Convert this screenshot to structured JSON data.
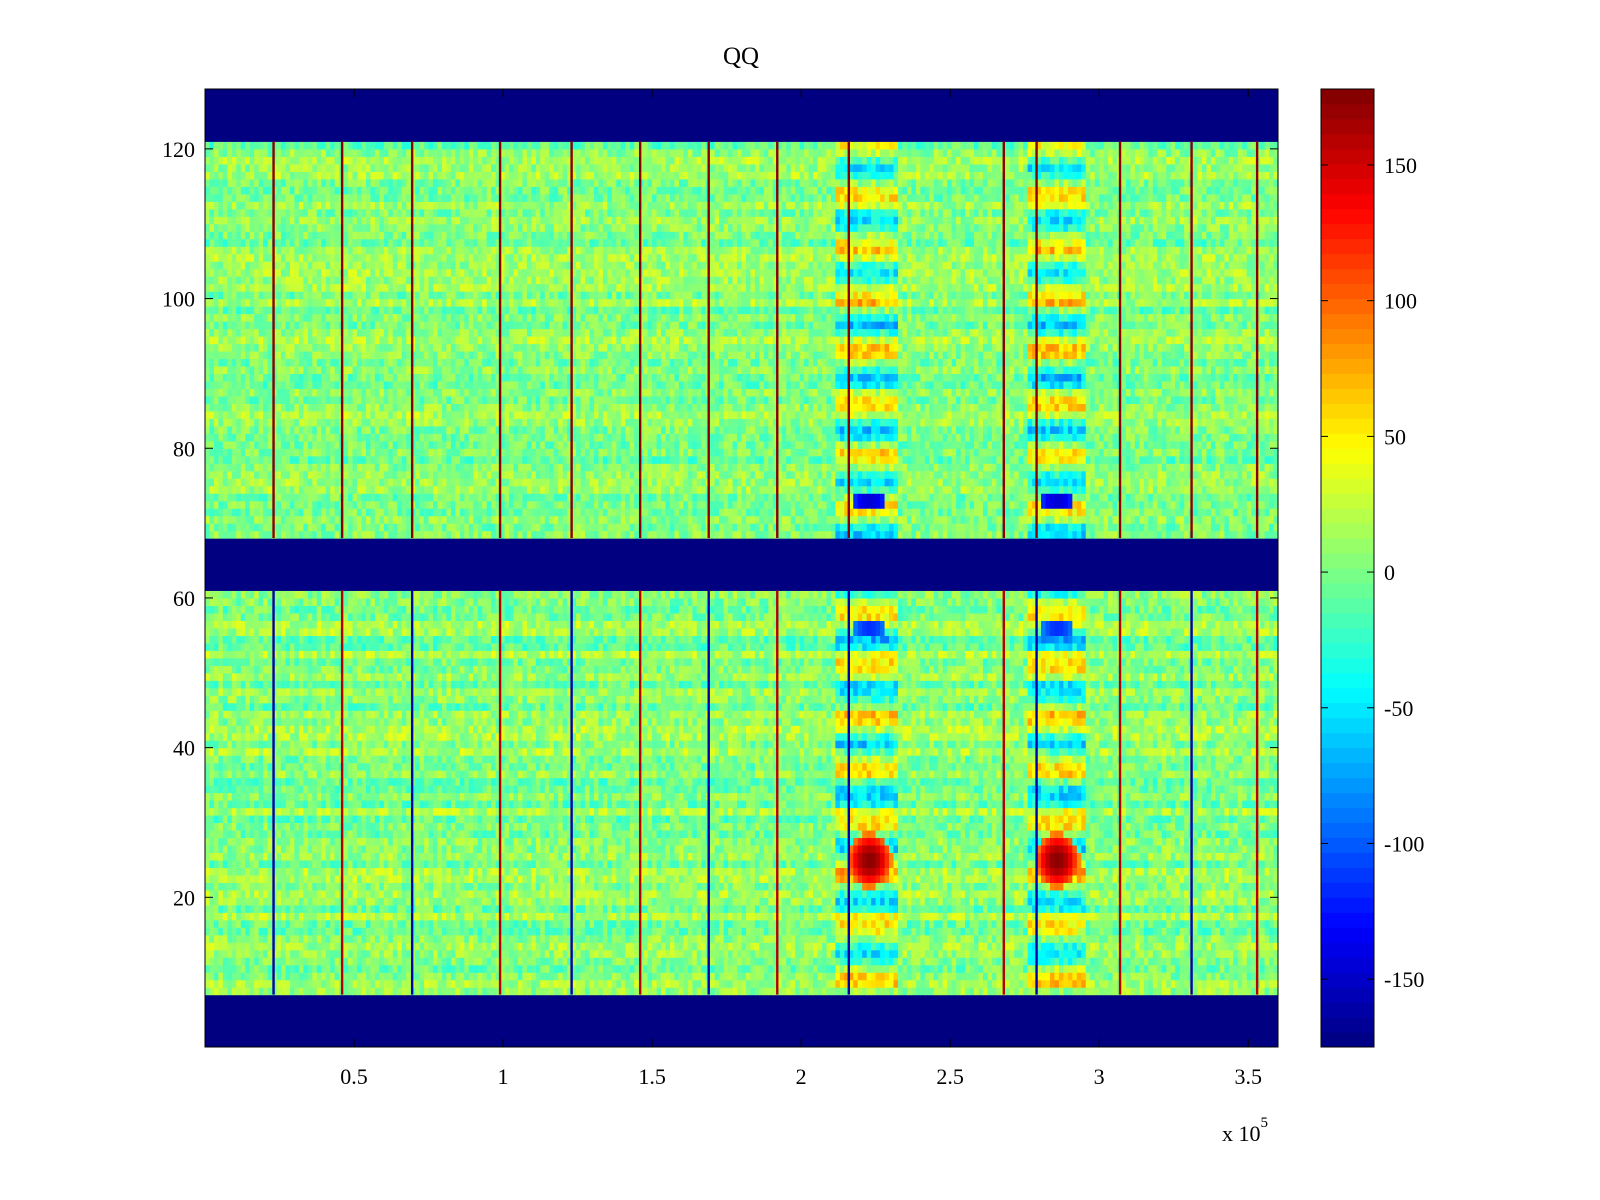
{
  "chart_data": {
    "type": "heatmap",
    "title": "QQ",
    "xlabel": "",
    "ylabel": "",
    "x_multiplier_label": "x 10",
    "x_multiplier_exponent": "5",
    "xlim": [
      0,
      360000
    ],
    "ylim": [
      0,
      128
    ],
    "x_ticks": [
      {
        "value": 50000,
        "label": "0.5"
      },
      {
        "value": 100000,
        "label": "1"
      },
      {
        "value": 150000,
        "label": "1.5"
      },
      {
        "value": 200000,
        "label": "2"
      },
      {
        "value": 250000,
        "label": "2.5"
      },
      {
        "value": 300000,
        "label": "3"
      },
      {
        "value": 350000,
        "label": "3.5"
      }
    ],
    "y_ticks": [
      {
        "value": 20,
        "label": "20"
      },
      {
        "value": 40,
        "label": "40"
      },
      {
        "value": 60,
        "label": "60"
      },
      {
        "value": 80,
        "label": "80"
      },
      {
        "value": 100,
        "label": "100"
      },
      {
        "value": 120,
        "label": "120"
      }
    ],
    "colorbar": {
      "colormap": "jet",
      "clim": [
        -175,
        178
      ],
      "ticks": [
        {
          "value": 150,
          "label": "150"
        },
        {
          "value": 100,
          "label": "100"
        },
        {
          "value": 50,
          "label": "50"
        },
        {
          "value": 0,
          "label": "0"
        },
        {
          "value": -50,
          "label": "-50"
        },
        {
          "value": -100,
          "label": "-100"
        },
        {
          "value": -150,
          "label": "-150"
        }
      ]
    },
    "masked_row_bands": [
      [
        0,
        7
      ],
      [
        61,
        68
      ],
      [
        121,
        128
      ]
    ],
    "masked_value": -175,
    "background_value": 5,
    "vertical_stripe_x": [
      23000,
      46000,
      69500,
      99000,
      123000,
      146000,
      169000,
      192000,
      216000,
      268000,
      279000,
      307000,
      331000,
      353000
    ],
    "hot_spots": [
      {
        "x": 223000,
        "y": 25,
        "value": 175
      },
      {
        "x": 286000,
        "y": 25,
        "value": 175
      }
    ],
    "cold_spots": [
      {
        "x": 223000,
        "y": 73,
        "value": -150
      },
      {
        "x": 286000,
        "y": 73,
        "value": -150
      },
      {
        "x": 223000,
        "y": 56,
        "value": -120
      },
      {
        "x": 286000,
        "y": 56,
        "value": -120
      }
    ],
    "grid": false
  }
}
